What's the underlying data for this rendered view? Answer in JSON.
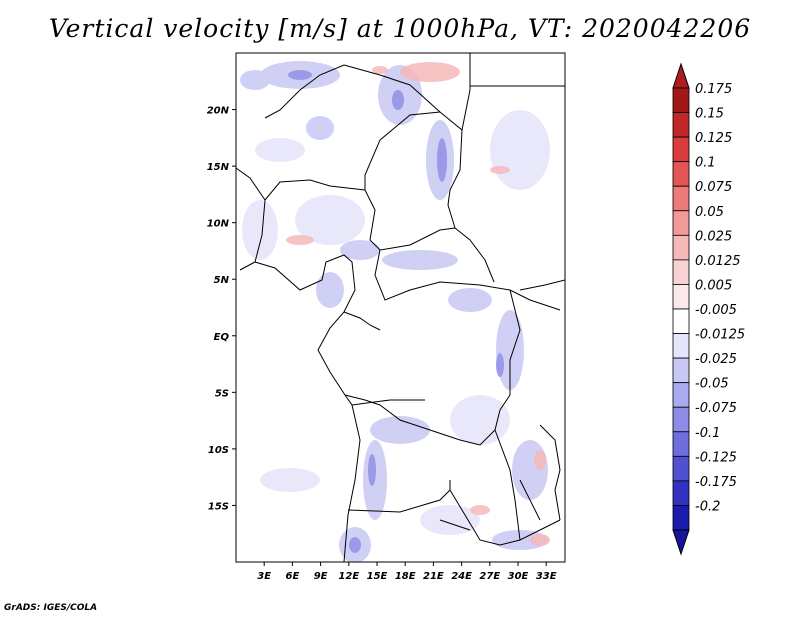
{
  "title": "Vertical velocity [m/s] at 1000hPa, VT: 2020042206",
  "map": {
    "lat_range": [
      -20,
      25
    ],
    "lon_range": [
      0,
      35
    ],
    "lat_ticks": [
      {
        "value": 20,
        "label": "20N"
      },
      {
        "value": 15,
        "label": "15N"
      },
      {
        "value": 10,
        "label": "10N"
      },
      {
        "value": 5,
        "label": "5N"
      },
      {
        "value": 0,
        "label": "EQ"
      },
      {
        "value": -5,
        "label": "5S"
      },
      {
        "value": -10,
        "label": "10S"
      },
      {
        "value": -15,
        "label": "15S"
      }
    ],
    "lon_ticks": [
      {
        "value": 3,
        "label": "3E"
      },
      {
        "value": 6,
        "label": "6E"
      },
      {
        "value": 9,
        "label": "9E"
      },
      {
        "value": 12,
        "label": "12E"
      },
      {
        "value": 15,
        "label": "15E"
      },
      {
        "value": 18,
        "label": "18E"
      },
      {
        "value": 21,
        "label": "21E"
      },
      {
        "value": 24,
        "label": "24E"
      },
      {
        "value": 27,
        "label": "27E"
      },
      {
        "value": 30,
        "label": "30E"
      },
      {
        "value": 33,
        "label": "33E"
      }
    ]
  },
  "colorbar": {
    "levels": [
      {
        "label": "0.175",
        "color": "#a01818"
      },
      {
        "label": "0.15",
        "color": "#c02828"
      },
      {
        "label": "0.125",
        "color": "#d83c3c"
      },
      {
        "label": "0.1",
        "color": "#e45656"
      },
      {
        "label": "0.075",
        "color": "#ec7a7a"
      },
      {
        "label": "0.05",
        "color": "#f29a9a"
      },
      {
        "label": "0.025",
        "color": "#f6b8b8"
      },
      {
        "label": "0.0125",
        "color": "#f8d2d2"
      },
      {
        "label": "0.005",
        "color": "#fbe8e8"
      },
      {
        "label": "-0.005",
        "color": "#ffffff"
      },
      {
        "label": "-0.0125",
        "color": "#e6e6fa"
      },
      {
        "label": "-0.025",
        "color": "#c8c8f4"
      },
      {
        "label": "-0.05",
        "color": "#aaaaee"
      },
      {
        "label": "-0.075",
        "color": "#8c8ce6"
      },
      {
        "label": "-0.1",
        "color": "#6e6edc"
      },
      {
        "label": "-0.125",
        "color": "#5050d0"
      },
      {
        "label": "-0.175",
        "color": "#3232c0"
      },
      {
        "label": "-0.2",
        "color": "#1c1cac"
      }
    ],
    "top_cap_color": "#b01c1c",
    "bottom_cap_color": "#14149e"
  },
  "credit": "GrADS: IGES/COLA"
}
